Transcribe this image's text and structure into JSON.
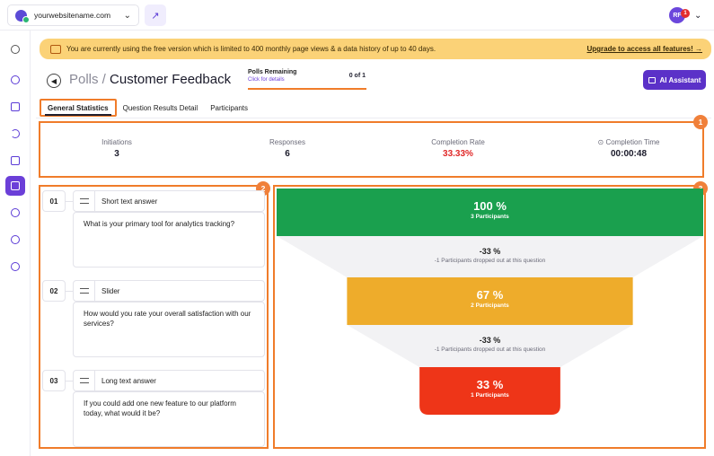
{
  "topbar": {
    "site_name": "yourwebsitename.com",
    "user_initials": "RF",
    "notification_count": "1"
  },
  "banner": {
    "message": "You are currently using the free version which is limited to 400 monthly page views & a data history of up to 40 days.",
    "upgrade_link": "Upgrade to access all features! →"
  },
  "header": {
    "crumb": "Polls / ",
    "title": "Customer Feedback",
    "remaining_label": "Polls Remaining",
    "remaining_link": "Click for details",
    "remaining_count": "0 of 1",
    "ai_button": "AI Assistant"
  },
  "tabs": [
    {
      "label": "General Statistics"
    },
    {
      "label": "Question Results Detail"
    },
    {
      "label": "Participants"
    }
  ],
  "markers": [
    "1",
    "2",
    "3"
  ],
  "stats": [
    {
      "label": "Initiations",
      "value": "3"
    },
    {
      "label": "Responses",
      "value": "6"
    },
    {
      "label": "Completion Rate",
      "value": "33.33%"
    },
    {
      "label": "⊙ Completion Time",
      "value": "00:00:48"
    }
  ],
  "questions": [
    {
      "number": "01",
      "type": "Short text answer",
      "text": "What is your primary tool for analytics tracking?"
    },
    {
      "number": "02",
      "type": "Slider",
      "text": "How would you rate your overall satisfaction with our services?"
    },
    {
      "number": "03",
      "type": "Long text answer",
      "text": "If you could add one new feature to our platform today, what would it be?"
    }
  ],
  "funnel": {
    "steps": [
      {
        "percent": "100 %",
        "participants": "3 Participants",
        "fraction": 1.0,
        "color": "#1aa04e"
      },
      {
        "percent": "67 %",
        "participants": "2 Participants",
        "fraction": 0.67,
        "color": "#eeac2b"
      },
      {
        "percent": "33 %",
        "participants": "1 Participants",
        "fraction": 0.33,
        "color": "#ee3518"
      }
    ],
    "drops": [
      {
        "percent": "-33 %",
        "text": "-1 Participants dropped out at this question"
      },
      {
        "percent": "-33 %",
        "text": "-1 Participants dropped out at this question"
      }
    ]
  },
  "colors": {
    "accent": "#6b3fd8",
    "highlight": "#f07c2a",
    "banner": "#fbd277"
  }
}
